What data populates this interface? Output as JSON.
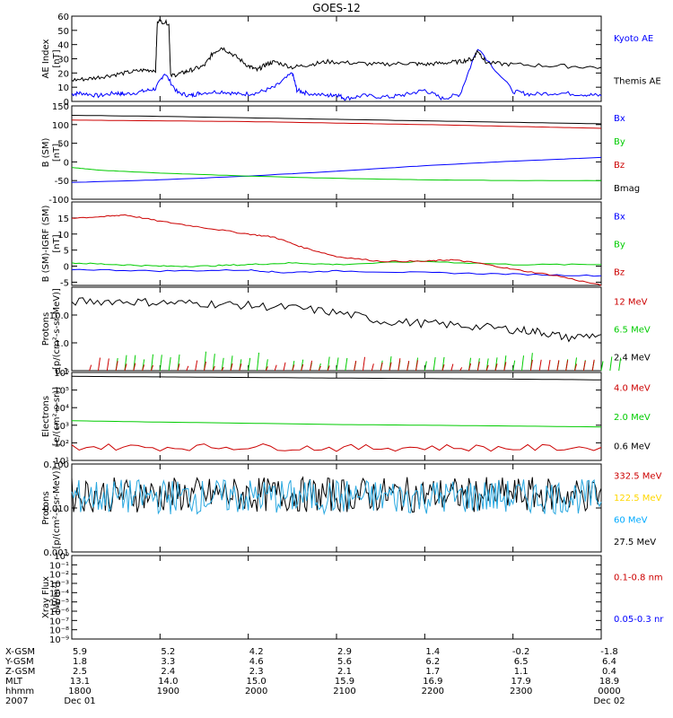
{
  "title": "GOES-12",
  "chart_data": [
    {
      "type": "line",
      "panel": "ae",
      "ylabel": [
        "AE Index",
        "[nT]"
      ],
      "ylim": [
        0,
        60
      ],
      "yticks": [
        "0",
        "10",
        "20",
        "30",
        "40",
        "50",
        "60"
      ],
      "scale": "linear",
      "legend": [
        {
          "label": "Kyoto AE",
          "color": "#0000ff"
        },
        {
          "label": "Themis AE",
          "color": "#000000"
        }
      ],
      "series": [
        {
          "name": "Kyoto AE",
          "color": "#0000ff",
          "x": [
            0,
            0.1,
            0.3,
            0.5,
            0.6,
            0.8,
            0.95,
            1.05,
            1.2,
            1.35,
            1.45,
            1.7,
            1.9,
            2.1,
            2.3,
            2.5,
            2.55,
            2.65,
            2.9,
            3.0,
            3.1,
            3.3,
            3.6,
            3.8,
            4.0,
            4.2,
            4.4,
            4.6,
            5.0,
            5.2,
            5.5,
            5.8,
            6.0
          ],
          "y": [
            5,
            6,
            4,
            6,
            5,
            7,
            9,
            20,
            6,
            4,
            6,
            7,
            5,
            6,
            10,
            20,
            8,
            6,
            4,
            5,
            2,
            4,
            3,
            5,
            8,
            2,
            5,
            38,
            7,
            5,
            6,
            5,
            4
          ]
        },
        {
          "name": "Themis AE",
          "color": "#000000",
          "x": [
            0,
            0.2,
            0.4,
            0.6,
            0.8,
            0.95,
            0.97,
            1.1,
            1.12,
            1.25,
            1.35,
            1.5,
            1.6,
            1.7,
            1.85,
            2.0,
            2.1,
            2.2,
            2.3,
            2.5,
            2.7,
            2.9,
            3.2,
            3.5,
            3.8,
            4.0,
            4.2,
            4.4,
            4.55,
            4.6,
            4.7,
            5.0,
            5.5,
            6.0
          ],
          "y": [
            15,
            16,
            18,
            20,
            22,
            22,
            57,
            55,
            18,
            20,
            22,
            25,
            34,
            38,
            32,
            25,
            22,
            26,
            28,
            24,
            26,
            28,
            27,
            26,
            27,
            26,
            27,
            28,
            30,
            36,
            27,
            26,
            25,
            24
          ]
        }
      ]
    },
    {
      "type": "line",
      "panel": "b_sm",
      "ylabel": [
        "B (SM)",
        "[nT]"
      ],
      "ylim": [
        -100,
        150
      ],
      "yticks": [
        "-100",
        "-50",
        "0",
        "50",
        "100",
        "150"
      ],
      "scale": "linear",
      "legend": [
        {
          "label": "Bx",
          "color": "#0000ff"
        },
        {
          "label": "By",
          "color": "#00cc00"
        },
        {
          "label": "Bz",
          "color": "#cc0000"
        },
        {
          "label": "Bmag",
          "color": "#000000"
        }
      ],
      "series": [
        {
          "name": "Bx",
          "color": "#0000ff",
          "x": [
            0,
            1,
            2,
            3,
            4,
            5,
            6
          ],
          "y": [
            -55,
            -48,
            -38,
            -25,
            -10,
            2,
            12
          ]
        },
        {
          "name": "By",
          "color": "#00cc00",
          "x": [
            0,
            0.3,
            1,
            2,
            3,
            4,
            5,
            6
          ],
          "y": [
            -15,
            -22,
            -30,
            -38,
            -44,
            -48,
            -50,
            -50
          ]
        },
        {
          "name": "Bz",
          "color": "#cc0000",
          "x": [
            0,
            1,
            2,
            3,
            4,
            5,
            6
          ],
          "y": [
            112,
            110,
            108,
            104,
            100,
            95,
            90
          ]
        },
        {
          "name": "Bmag",
          "color": "#000000",
          "x": [
            0,
            1,
            2,
            3,
            4,
            5,
            6
          ],
          "y": [
            125,
            122,
            118,
            114,
            110,
            106,
            102
          ]
        }
      ]
    },
    {
      "type": "line",
      "panel": "b_minus_igrf",
      "ylabel": [
        "B (SM)-IGRF (SM)",
        "[nT]"
      ],
      "ylim": [
        -6,
        20
      ],
      "yticks": [
        "-5",
        "0",
        "5",
        "10",
        "15"
      ],
      "scale": "linear",
      "legend": [
        {
          "label": "Bx",
          "color": "#0000ff"
        },
        {
          "label": "By",
          "color": "#00cc00"
        },
        {
          "label": "Bz",
          "color": "#cc0000"
        }
      ],
      "series": [
        {
          "name": "Bx",
          "color": "#0000ff",
          "x": [
            0,
            1,
            2,
            2.4,
            3,
            4,
            5,
            6
          ],
          "y": [
            -1,
            -1.5,
            -1.2,
            -2,
            -1.5,
            -2,
            -2.5,
            -3
          ]
        },
        {
          "name": "By",
          "color": "#00cc00",
          "x": [
            0,
            0.5,
            1,
            1.5,
            2,
            2.5,
            3,
            4,
            5,
            6
          ],
          "y": [
            1,
            0.5,
            0,
            0,
            0.5,
            1,
            0.5,
            1.5,
            0.5,
            0.5
          ]
        },
        {
          "name": "Bz",
          "color": "#cc0000",
          "x": [
            0,
            0.4,
            0.6,
            1.0,
            1.5,
            2.0,
            2.3,
            2.6,
            3.0,
            3.5,
            4.0,
            4.3,
            4.6,
            5.0,
            5.5,
            6.0
          ],
          "y": [
            15,
            15.5,
            16,
            14,
            12,
            10,
            9,
            6,
            3,
            1.5,
            1.5,
            2,
            1,
            -1,
            -3,
            -6
          ]
        }
      ]
    },
    {
      "type": "line",
      "panel": "protons_low",
      "ylabel": [
        "Protons",
        "[p/(cm²-s-sr-MeV)]"
      ],
      "ylim": [
        0.1,
        100
      ],
      "yticks": [
        "0.1",
        "1.0",
        "10.0"
      ],
      "scale": "log",
      "legend": [
        {
          "label": "12 MeV",
          "color": "#cc0000"
        },
        {
          "label": "6.5 MeV",
          "color": "#00cc00"
        },
        {
          "label": "2.4 MeV",
          "color": "#000000"
        }
      ],
      "series": [
        {
          "name": "2.4 MeV",
          "color": "#000000",
          "x": [
            0,
            0.5,
            1,
            1.5,
            2,
            2.5,
            3,
            3.5,
            4,
            4.5,
            5,
            5.3,
            5.6,
            6
          ],
          "y": [
            30,
            32,
            28,
            26,
            22,
            18,
            12,
            6,
            5,
            4,
            3,
            2.5,
            1.5,
            2
          ]
        },
        {
          "name": "6.5 MeV",
          "color": "#00cc00",
          "x": [
            0.5,
            1.5,
            2.5,
            3.5,
            4.5,
            5.5
          ],
          "y": [
            0.2,
            0.25,
            0.18,
            0.2,
            0.22,
            0.18
          ]
        },
        {
          "name": "12 MeV",
          "color": "#cc0000",
          "x": [
            0.2,
            1.2,
            2.2,
            3.2,
            4.2,
            5.2
          ],
          "y": [
            0.15,
            0.13,
            0.14,
            0.16,
            0.12,
            0.14
          ]
        }
      ]
    },
    {
      "type": "line",
      "panel": "electrons",
      "ylabel": [
        "Electrons",
        "[e/(cm²-s-sr)]"
      ],
      "ylim": [
        10,
        1000000
      ],
      "yticks": [
        "10¹",
        "10²",
        "10³",
        "10⁴",
        "10⁵",
        "10⁶"
      ],
      "scale": "log",
      "legend": [
        {
          "label": "4.0 MeV",
          "color": "#cc0000"
        },
        {
          "label": "2.0 MeV",
          "color": "#00cc00"
        },
        {
          "label": "0.6 MeV",
          "color": "#000000"
        }
      ],
      "series": [
        {
          "name": "0.6 MeV",
          "color": "#000000",
          "x": [
            0,
            1,
            2,
            3,
            4,
            5,
            6
          ],
          "y": [
            600000,
            560000,
            520000,
            480000,
            450000,
            420000,
            380000
          ]
        },
        {
          "name": "2.0 MeV",
          "color": "#00cc00",
          "x": [
            0,
            1,
            2,
            3,
            4,
            5,
            6
          ],
          "y": [
            1800,
            1500,
            1300,
            1100,
            1000,
            900,
            800
          ]
        },
        {
          "name": "4.0 MeV",
          "color": "#cc0000",
          "x": [
            0,
            1,
            2,
            3,
            4,
            5,
            6
          ],
          "y": [
            60,
            55,
            60,
            50,
            55,
            50,
            55
          ]
        }
      ]
    },
    {
      "type": "line",
      "panel": "protons_high",
      "ylabel": [
        "Protons",
        "[p/(cm²-s-sr-MeV)]"
      ],
      "ylim": [
        0.001,
        0.1
      ],
      "yticks": [
        "0.001",
        "0.010",
        "0.100"
      ],
      "scale": "log",
      "legend": [
        {
          "label": "332.5 MeV",
          "color": "#cc0000"
        },
        {
          "label": "122.5 MeV",
          "color": "#ffd700"
        },
        {
          "label": "60 MeV",
          "color": "#00aaff"
        },
        {
          "label": "27.5 MeV",
          "color": "#000000"
        }
      ],
      "series": [
        {
          "name": "27.5 MeV",
          "color": "#000000",
          "x": [
            0,
            6
          ],
          "y": [
            0.02,
            0.02
          ]
        },
        {
          "name": "60 MeV",
          "color": "#29a8e0",
          "x": [
            0,
            6
          ],
          "y": [
            0.018,
            0.018
          ]
        }
      ]
    },
    {
      "type": "line",
      "panel": "xray",
      "ylabel": [
        "Xray Flux",
        "[W/m²]"
      ],
      "ylim": [
        1e-09,
        1
      ],
      "yticks": [
        "10⁻⁹",
        "10⁻⁸",
        "10⁻⁷",
        "10⁻⁶",
        "10⁻⁵",
        "10⁻⁴",
        "10⁻³",
        "10⁻²",
        "10⁻¹",
        "10⁰"
      ],
      "scale": "log",
      "legend": [
        {
          "label": "0.1-0.8 nm",
          "color": "#cc0000"
        },
        {
          "label": "0.05-0.3 nr",
          "color": "#0000ff"
        }
      ],
      "series": []
    }
  ],
  "xaxis": {
    "rows": [
      {
        "label": "X-GSM",
        "values": [
          "5.9",
          "5.2",
          "4.2",
          "2.9",
          "1.4",
          "-0.2",
          "-1.8"
        ]
      },
      {
        "label": "Y-GSM",
        "values": [
          "1.8",
          "3.3",
          "4.6",
          "5.6",
          "6.2",
          "6.5",
          "6.4"
        ]
      },
      {
        "label": "Z-GSM",
        "values": [
          "2.5",
          "2.4",
          "2.3",
          "2.1",
          "1.7",
          "1.1",
          "0.4"
        ]
      },
      {
        "label": "MLT",
        "values": [
          "13.1",
          "14.0",
          "15.0",
          "15.9",
          "16.9",
          "17.9",
          "18.9"
        ]
      },
      {
        "label": "hhmm",
        "values": [
          "1800",
          "1900",
          "2000",
          "2100",
          "2200",
          "2300",
          "0000"
        ]
      },
      {
        "label": "2007",
        "values": [
          "Dec 01",
          "",
          "",
          "",
          "",
          "",
          "Dec 02"
        ]
      }
    ]
  }
}
